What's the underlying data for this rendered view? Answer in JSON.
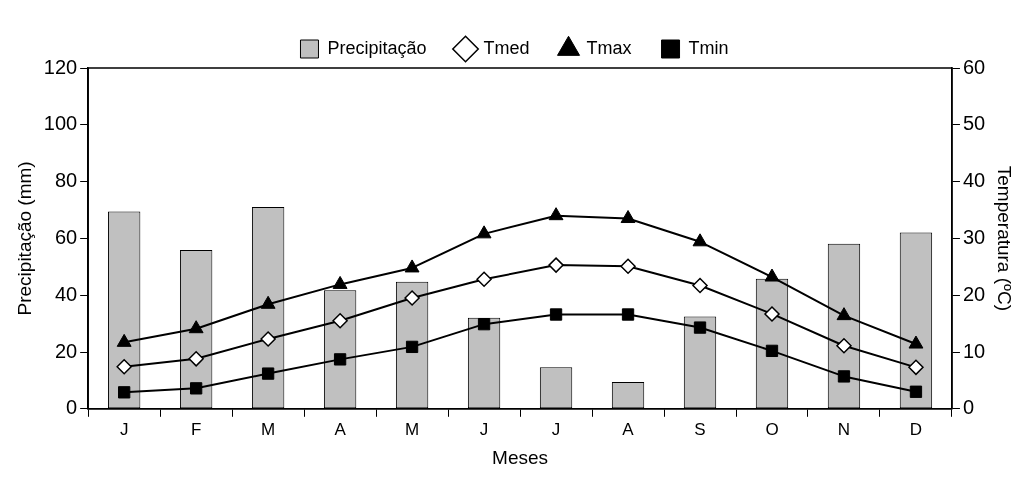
{
  "chart_data": {
    "type": "bar",
    "xlabel": "Meses",
    "ylabel": "Precipitação (mm)",
    "y2label": "Temperatura (ºC)",
    "categories": [
      "J",
      "F",
      "M",
      "A",
      "M",
      "J",
      "J",
      "A",
      "S",
      "O",
      "N",
      "D"
    ],
    "series": [
      {
        "name": "Precipitação",
        "color": "#c0c0c0",
        "values": [
          69.5,
          55.9,
          71.1,
          41.7,
          44.7,
          32.1,
          14.6,
          9.4,
          32.5,
          45.8,
          58.1,
          62.1
        ]
      },
      {
        "name": "Tmed",
        "type": "line",
        "axis": "y2",
        "marker": "diamond",
        "color": "#000000",
        "values": [
          7.4,
          8.8,
          12.3,
          15.5,
          19.5,
          22.8,
          25.3,
          25.1,
          21.7,
          16.7,
          11.1,
          7.3
        ]
      },
      {
        "name": "Tmax",
        "type": "line",
        "axis": "y2",
        "marker": "triangle",
        "color": "#000000",
        "values": [
          11.7,
          14.1,
          18.4,
          21.9,
          24.8,
          30.8,
          34.0,
          33.5,
          29.4,
          23.2,
          16.4,
          11.4
        ]
      },
      {
        "name": "Tmin",
        "type": "line",
        "axis": "y2",
        "marker": "square",
        "color": "#000000",
        "values": [
          2.9,
          3.6,
          6.2,
          8.7,
          10.9,
          14.9,
          16.6,
          16.6,
          14.3,
          10.2,
          5.7,
          3.0
        ]
      }
    ],
    "ylim": [
      0,
      120
    ],
    "yticks": [
      0,
      20,
      40,
      60,
      80,
      100,
      120
    ],
    "y2lim": [
      0,
      60
    ],
    "y2ticks": [
      0,
      10,
      20,
      30,
      40,
      50,
      60
    ],
    "grid": false,
    "legend": "top"
  }
}
